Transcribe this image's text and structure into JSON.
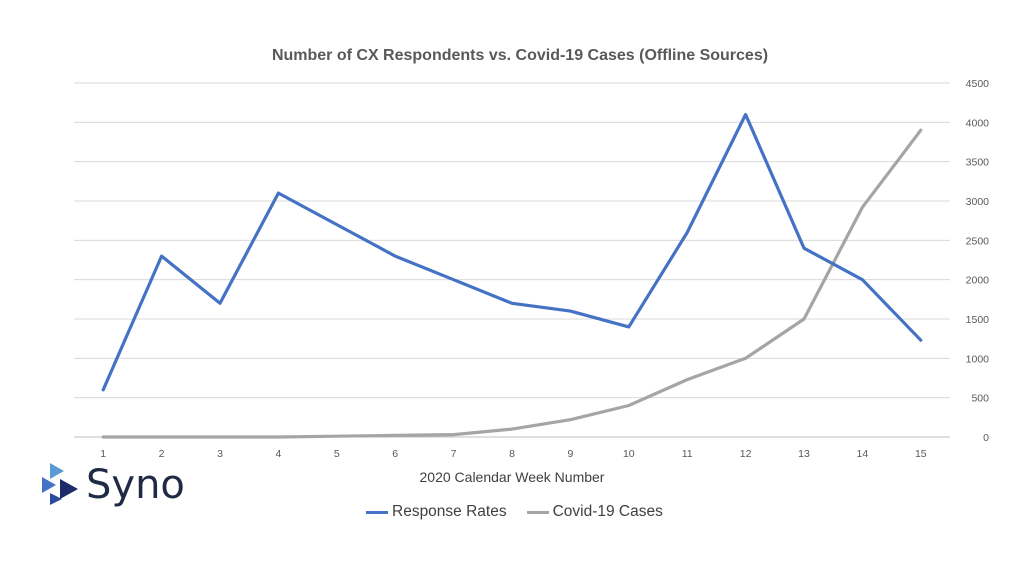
{
  "chart_data": {
    "type": "line",
    "title": "Number of CX Respondents vs. Covid-19 Cases (Offline Sources)",
    "xlabel": "2020 Calendar Week Number",
    "ylabel": "",
    "categories": [
      "1",
      "2",
      "3",
      "4",
      "5",
      "6",
      "7",
      "8",
      "9",
      "10",
      "11",
      "12",
      "13",
      "14",
      "15"
    ],
    "ylim": [
      0,
      4500
    ],
    "yticks": [
      0,
      500,
      1000,
      1500,
      2000,
      2500,
      3000,
      3500,
      4000,
      4500
    ],
    "ytick_side": "right",
    "grid": true,
    "legend_position": "bottom",
    "series": [
      {
        "name": "Response Rates",
        "color": "#4472c4",
        "values": [
          600,
          2300,
          1700,
          3100,
          2700,
          2300,
          2000,
          1700,
          1600,
          1400,
          2600,
          4100,
          2400,
          2000,
          1230
        ]
      },
      {
        "name": "Covid-19 Cases",
        "color": "#a5a5a5",
        "values": [
          0,
          0,
          0,
          0,
          10,
          20,
          30,
          100,
          220,
          400,
          730,
          1000,
          1500,
          2920,
          3900
        ]
      }
    ]
  },
  "logo": {
    "text": "Syno",
    "icon": "syno-logo-icon"
  }
}
